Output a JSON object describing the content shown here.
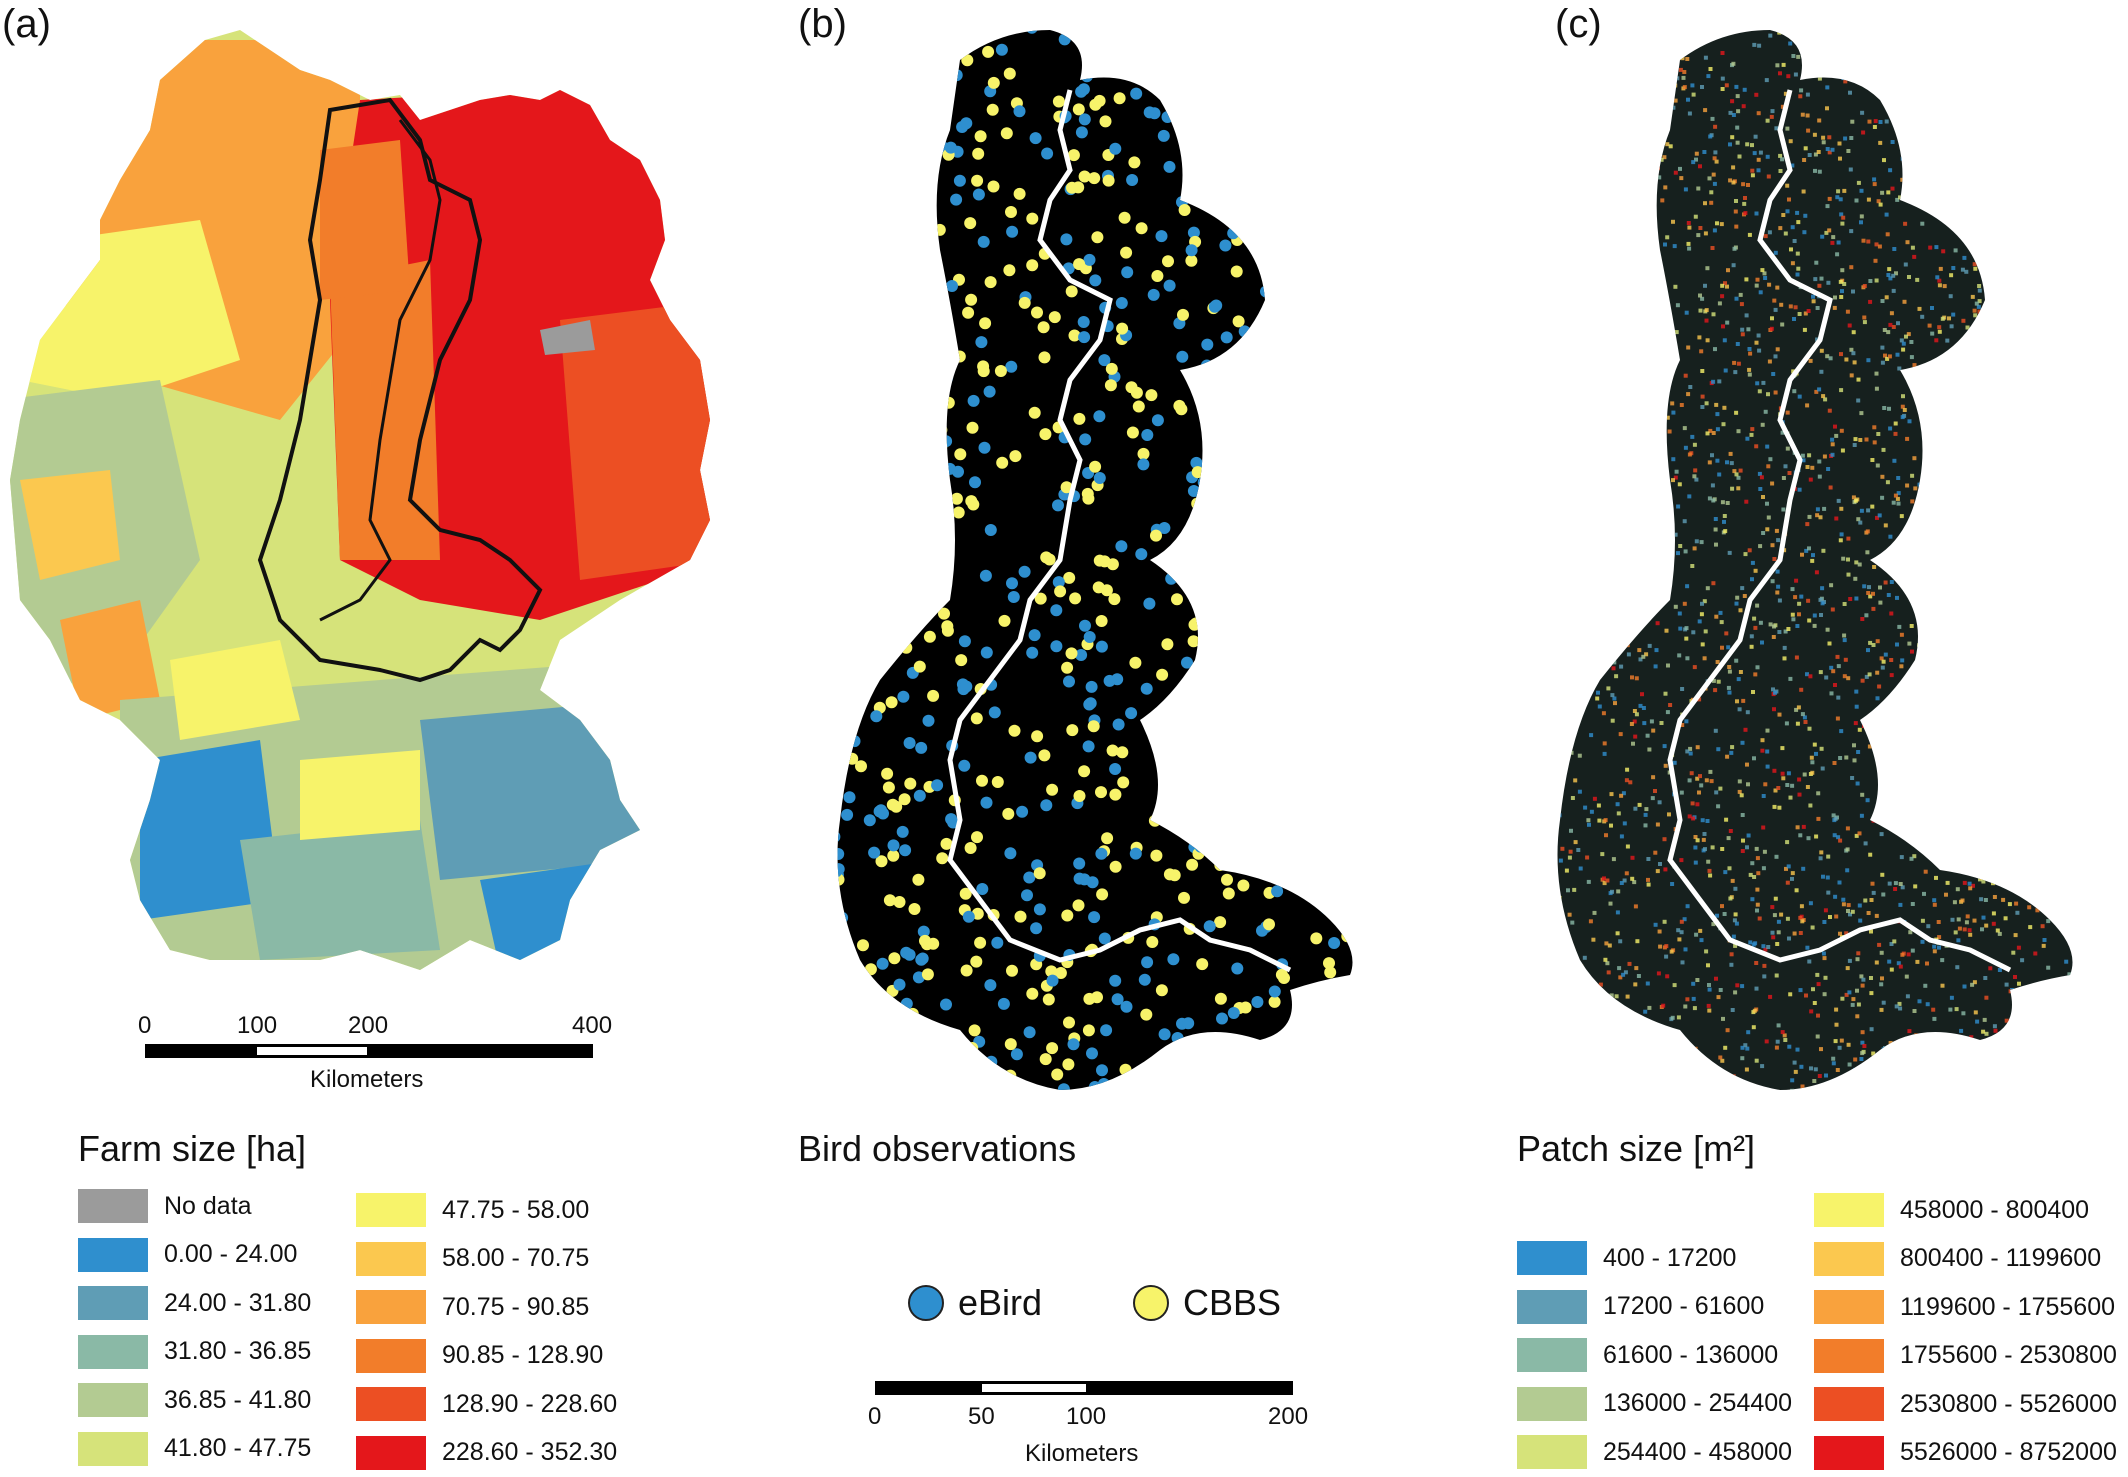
{
  "panels": {
    "a": {
      "label": "(a)"
    },
    "b": {
      "label": "(b)"
    },
    "c": {
      "label": "(c)"
    }
  },
  "colors": {
    "nodata": "#9b9b9b",
    "c1": "#2f8fce",
    "c2": "#5f9db5",
    "c3": "#8ab9a6",
    "c4": "#b3cb92",
    "c5": "#d6e37a",
    "c6": "#f7f36a",
    "c7": "#fbc84f",
    "c8": "#f9a23d",
    "c9": "#f27d2a",
    "c10": "#ec4f23",
    "c11": "#e4171b",
    "ebird": "#2e8fcf",
    "cbbs": "#f7f36a",
    "river": "#ffffff",
    "corridor_bg": "#000000"
  },
  "legend_a": {
    "title": "Farm size [ha]",
    "items_col1": [
      {
        "label": "No data",
        "color": "#9b9b9b"
      },
      {
        "label": "0.00 - 24.00",
        "color": "#2f8fce"
      },
      {
        "label": "24.00 - 31.80",
        "color": "#5f9db5"
      },
      {
        "label": "31.80 - 36.85",
        "color": "#8ab9a6"
      },
      {
        "label": "36.85 - 41.80",
        "color": "#b3cb92"
      },
      {
        "label": "41.80 - 47.75",
        "color": "#d6e37a"
      }
    ],
    "items_col2": [
      {
        "label": "47.75 - 58.00",
        "color": "#f7f36a"
      },
      {
        "label": "58.00 - 70.75",
        "color": "#fbc84f"
      },
      {
        "label": "70.75 - 90.85",
        "color": "#f9a23d"
      },
      {
        "label": "90.85 - 128.90",
        "color": "#f27d2a"
      },
      {
        "label": "128.90 - 228.60",
        "color": "#ec4f23"
      },
      {
        "label": "228.60 - 352.30",
        "color": "#e4171b"
      }
    ]
  },
  "legend_b": {
    "title": "Bird observations",
    "ebird_label": "eBird",
    "cbbs_label": "CBBS"
  },
  "legend_c": {
    "title": "Patch size [m²]",
    "items_col1": [
      {
        "label": "400 - 17200",
        "color": "#2f8fce"
      },
      {
        "label": "17200 - 61600",
        "color": "#5f9db5"
      },
      {
        "label": "61600 - 136000",
        "color": "#8ab9a6"
      },
      {
        "label": "136000 - 254400",
        "color": "#b3cb92"
      },
      {
        "label": "254400 - 458000",
        "color": "#d6e37a"
      }
    ],
    "items_col2": [
      {
        "label": "458000 - 800400",
        "color": "#f7f36a"
      },
      {
        "label": "800400 - 1199600",
        "color": "#fbc84f"
      },
      {
        "label": "1199600 - 1755600",
        "color": "#f9a23d"
      },
      {
        "label": "1755600 - 2530800",
        "color": "#f27d2a"
      },
      {
        "label": "2530800 - 5526000",
        "color": "#ec4f23"
      },
      {
        "label": "5526000 - 8752000",
        "color": "#e4171b"
      }
    ]
  },
  "scalebar_a": {
    "ticks": [
      "0",
      "100",
      "200",
      "400"
    ],
    "unit": "Kilometers"
  },
  "scalebar_b": {
    "ticks": [
      "0",
      "50",
      "100",
      "200"
    ],
    "unit": "Kilometers"
  }
}
